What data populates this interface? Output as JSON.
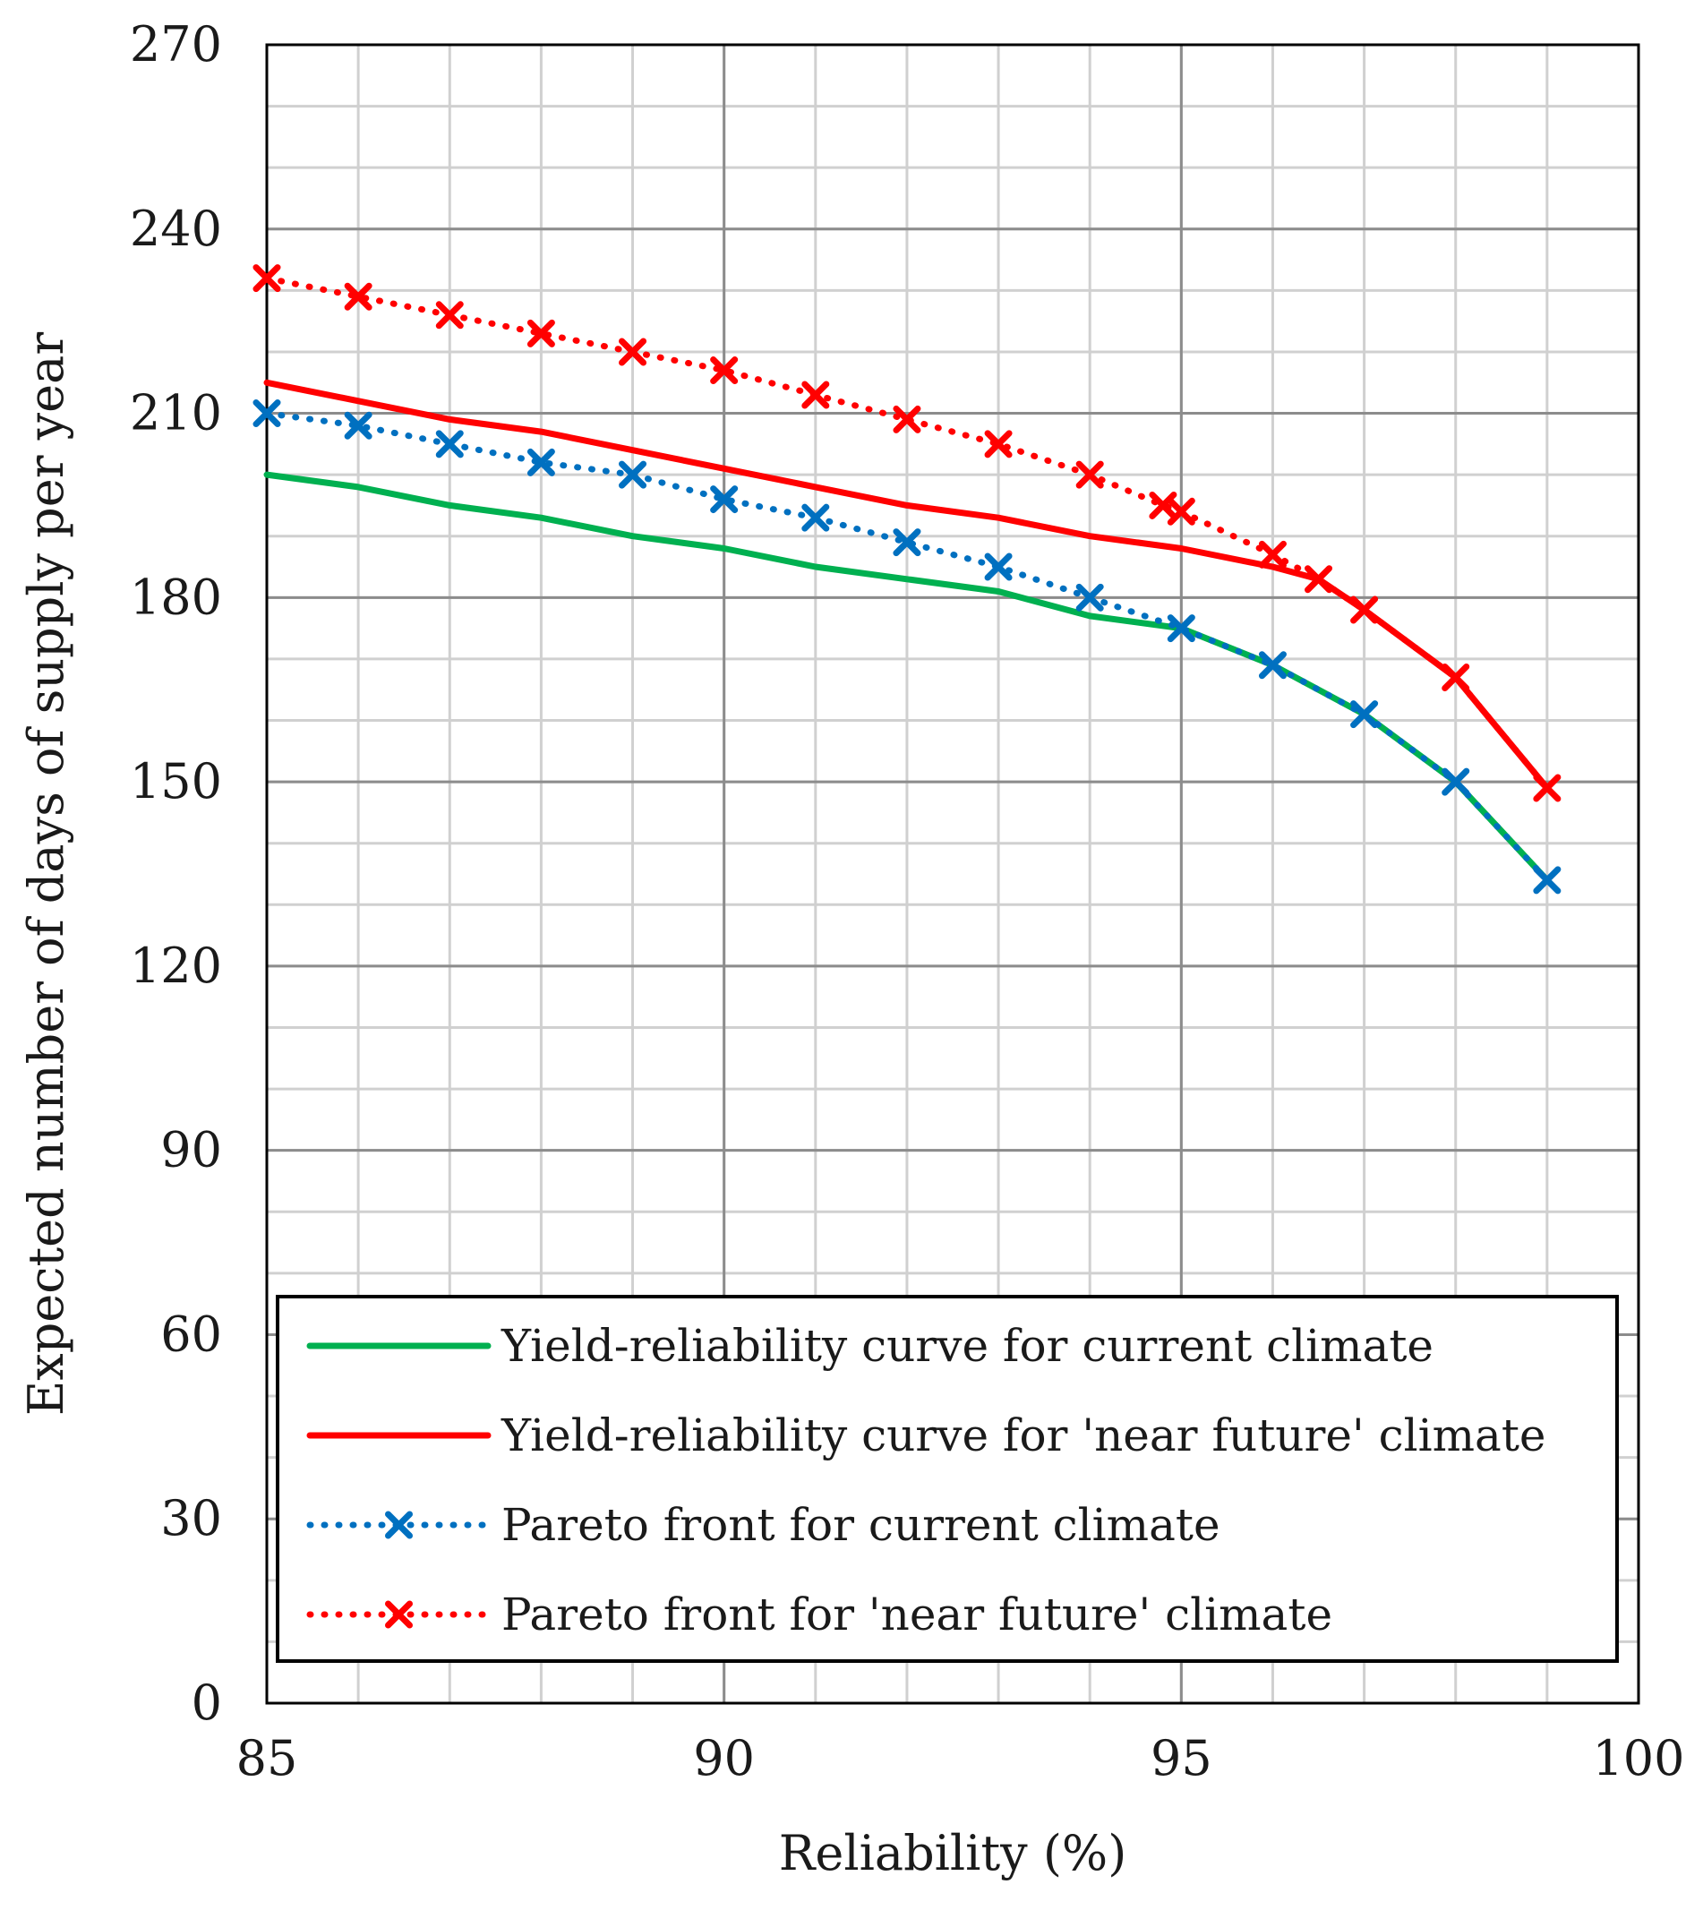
{
  "chart_data": {
    "type": "line",
    "title": "",
    "xlabel": "Reliability (%)",
    "ylabel": "Expected number of days of supply per year",
    "xlim": [
      85,
      100
    ],
    "ylim": [
      0,
      270
    ],
    "x_major_ticks": [
      85,
      90,
      95,
      100
    ],
    "y_major_ticks": [
      0,
      30,
      60,
      90,
      120,
      150,
      180,
      210,
      240,
      270
    ],
    "x_minor_step": 1,
    "y_minor_step": 10,
    "grid": true,
    "legend_position": "bottom-right",
    "series": [
      {
        "name": "Yield-reliability curve for current climate",
        "style": "solid",
        "marker": "none",
        "color": "#00b050",
        "x": [
          85,
          86,
          87,
          88,
          89,
          90,
          91,
          92,
          93,
          94,
          95,
          96,
          97,
          98,
          99
        ],
        "y": [
          200,
          198,
          195,
          193,
          190,
          188,
          185,
          183,
          181,
          177,
          175,
          169,
          161,
          150,
          134
        ]
      },
      {
        "name": "Yield-reliability curve for 'near future' climate",
        "style": "solid",
        "marker": "none",
        "color": "#ff0000",
        "x": [
          85,
          86,
          87,
          88,
          89,
          90,
          91,
          92,
          93,
          94,
          95,
          96,
          96.5,
          97,
          98,
          99
        ],
        "y": [
          215,
          212,
          209,
          207,
          204,
          201,
          198,
          195,
          193,
          190,
          188,
          185,
          183,
          178,
          167,
          149
        ]
      },
      {
        "name": "Pareto front for current climate",
        "style": "dotted",
        "marker": "x",
        "color": "#0070c0",
        "x": [
          85,
          86,
          87,
          88,
          89,
          90,
          91,
          92,
          93,
          94,
          95,
          96,
          97,
          98,
          99
        ],
        "y": [
          210,
          208,
          205,
          202,
          200,
          196,
          193,
          189,
          185,
          180,
          175,
          169,
          161,
          150,
          134
        ]
      },
      {
        "name": "Pareto front for 'near future' climate",
        "style": "dotted",
        "marker": "x",
        "color": "#ff0000",
        "x": [
          85,
          86,
          87,
          88,
          89,
          90,
          91,
          92,
          93,
          94,
          94.8,
          95,
          96,
          96.5,
          97,
          98,
          99
        ],
        "y": [
          232,
          229,
          226,
          223,
          220,
          217,
          213,
          209,
          205,
          200,
          195,
          194,
          187,
          183,
          178,
          167,
          149
        ]
      }
    ]
  }
}
